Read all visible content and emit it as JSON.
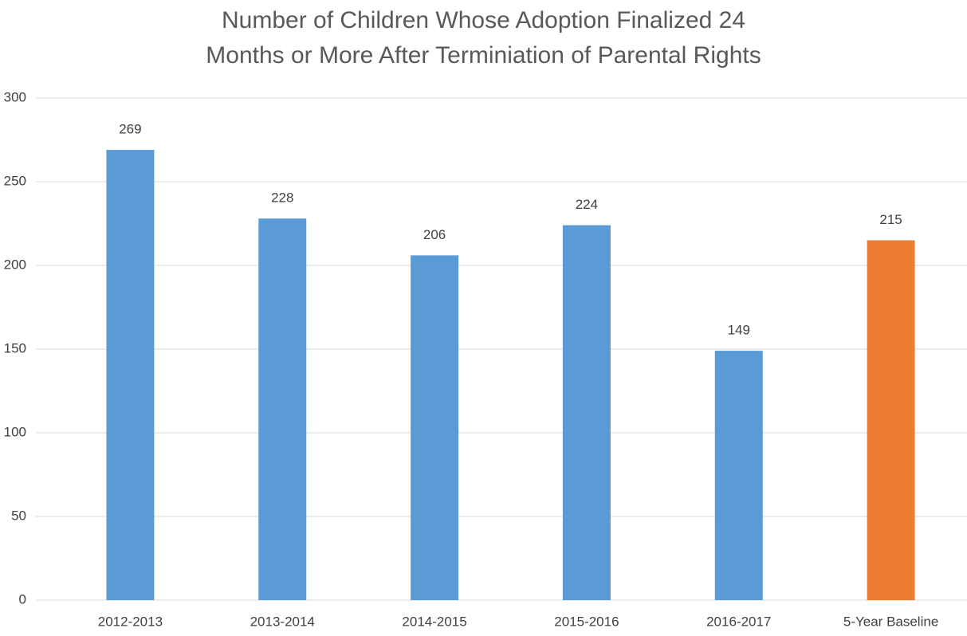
{
  "chart_data": {
    "type": "bar",
    "title": "Number of Children Whose Adoption Finalized 24 Months or More After Terminiation of Parental Rights",
    "categories": [
      "2012-2013",
      "2013-2014",
      "2014-2015",
      "2015-2016",
      "2016-2017",
      "5-Year Baseline"
    ],
    "values": [
      269,
      228,
      206,
      224,
      149,
      215
    ],
    "colors": [
      "#5b9bd5",
      "#5b9bd5",
      "#5b9bd5",
      "#5b9bd5",
      "#5b9bd5",
      "#ed7d31"
    ],
    "ylim": [
      0,
      300
    ],
    "yticks": [
      0,
      50,
      100,
      150,
      200,
      250,
      300
    ],
    "grid": true
  }
}
